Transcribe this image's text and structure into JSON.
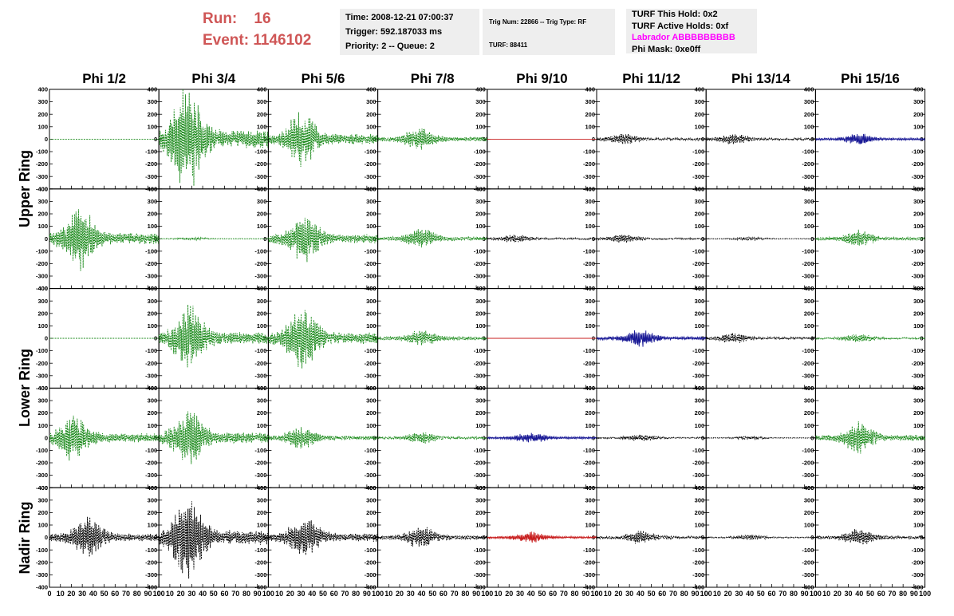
{
  "header": {
    "run_label": "Run:",
    "run_value": "16",
    "event_label": "Event:",
    "event_value": "1146102"
  },
  "time_box": {
    "time": "Time: 2008-12-21 07:00:37",
    "trigger": "Trigger: 592.187033 ms",
    "priority": "Priority: 2 -- Queue: 2"
  },
  "trig_box": {
    "trig_line": "Trig Num: 22866 -- Trig Type: RF",
    "turf_line": "TURF: 88411"
  },
  "turf_box": {
    "this_hold": "TURF This Hold: 0x2",
    "active_holds": "TURF Active Holds: 0xf",
    "labrador": "Labrador ABBBBBBBBB",
    "phi_mask": "Phi Mask: 0xe0ff"
  },
  "colors": {
    "run_text": "#cf5656",
    "labrador": "#ff00ff",
    "box_bg": "#eeeeee",
    "green": "#1a8a1a",
    "black": "#000000",
    "blue": "#1a1a96",
    "red": "#c81e1e"
  },
  "columns": [
    "Phi 1/2",
    "Phi 3/4",
    "Phi 5/6",
    "Phi 7/8",
    "Phi 9/10",
    "Phi 11/12",
    "Phi 13/14",
    "Phi 15/16"
  ],
  "ring_labels": [
    "Upper Ring",
    "Lower Ring",
    "Nadir Ring"
  ],
  "chart_data": {
    "type": "line",
    "xlim": [
      0,
      100
    ],
    "ylim": [
      -400,
      400
    ],
    "x_ticks": [
      "0",
      "10",
      "20",
      "30",
      "40",
      "50",
      "60",
      "70",
      "80",
      "90",
      "100"
    ],
    "y_ticks": [
      "400",
      "300",
      "200",
      "100",
      "0",
      "-100",
      "-200",
      "-300",
      "-400"
    ],
    "line_style": {
      "green": "dashed",
      "black": "dashed",
      "blue": "solid",
      "red": "solid"
    },
    "panels": [
      [
        {
          "color": "green",
          "amp": 0,
          "peak": 0
        },
        {
          "color": "green",
          "amp": 360,
          "peak": 26
        },
        {
          "color": "green",
          "amp": 190,
          "peak": 30
        },
        {
          "color": "green",
          "amp": 80,
          "peak": 38
        },
        {
          "color": "red",
          "amp": 0,
          "peak": 0
        },
        {
          "color": "black",
          "amp": 40,
          "peak": 25
        },
        {
          "color": "black",
          "amp": 40,
          "peak": 25
        },
        {
          "color": "blue",
          "amp": 40,
          "peak": 40
        }
      ],
      [
        {
          "color": "green",
          "amp": 220,
          "peak": 28
        },
        {
          "color": "green",
          "amp": 10,
          "peak": 30
        },
        {
          "color": "green",
          "amp": 170,
          "peak": 33
        },
        {
          "color": "green",
          "amp": 70,
          "peak": 40
        },
        {
          "color": "black",
          "amp": 30,
          "peak": 25
        },
        {
          "color": "black",
          "amp": 30,
          "peak": 25
        },
        {
          "color": "black",
          "amp": 12,
          "peak": 40
        },
        {
          "color": "green",
          "amp": 60,
          "peak": 40
        }
      ],
      [
        {
          "color": "green",
          "amp": 0,
          "peak": 0
        },
        {
          "color": "green",
          "amp": 230,
          "peak": 28
        },
        {
          "color": "green",
          "amp": 220,
          "peak": 32
        },
        {
          "color": "green",
          "amp": 60,
          "peak": 40
        },
        {
          "color": "red",
          "amp": 0,
          "peak": 0
        },
        {
          "color": "blue",
          "amp": 60,
          "peak": 40
        },
        {
          "color": "black",
          "amp": 40,
          "peak": 25
        },
        {
          "color": "green",
          "amp": 30,
          "peak": 40
        }
      ],
      [
        {
          "color": "green",
          "amp": 170,
          "peak": 22
        },
        {
          "color": "green",
          "amp": 200,
          "peak": 28
        },
        {
          "color": "green",
          "amp": 80,
          "peak": 30
        },
        {
          "color": "green",
          "amp": 40,
          "peak": 40
        },
        {
          "color": "blue",
          "amp": 40,
          "peak": 40
        },
        {
          "color": "black",
          "amp": 25,
          "peak": 40
        },
        {
          "color": "black",
          "amp": 12,
          "peak": 40
        },
        {
          "color": "green",
          "amp": 110,
          "peak": 40
        }
      ],
      [
        {
          "color": "black",
          "amp": 150,
          "peak": 35
        },
        {
          "color": "black",
          "amp": 280,
          "peak": 27
        },
        {
          "color": "black",
          "amp": 160,
          "peak": 33
        },
        {
          "color": "black",
          "amp": 80,
          "peak": 40
        },
        {
          "color": "red",
          "amp": 40,
          "peak": 40
        },
        {
          "color": "black",
          "amp": 50,
          "peak": 40
        },
        {
          "color": "black",
          "amp": 20,
          "peak": 40
        },
        {
          "color": "black",
          "amp": 60,
          "peak": 40
        }
      ]
    ]
  }
}
